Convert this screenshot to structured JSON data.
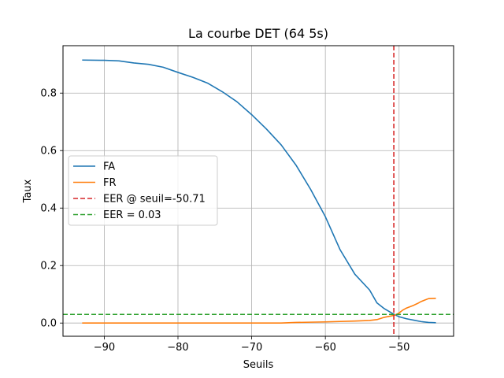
{
  "chart_data": {
    "type": "line",
    "title": "La courbe DET (64 5s)",
    "xlabel": "Seuils",
    "ylabel": "Taux",
    "xlim": [
      -95.6,
      -42.6
    ],
    "ylim": [
      -0.046,
      0.965
    ],
    "xticks": [
      -90,
      -80,
      -70,
      -60,
      -50
    ],
    "yticks": [
      0.0,
      0.2,
      0.4,
      0.6,
      0.8
    ],
    "grid": true,
    "legend_position": "center-left",
    "series": [
      {
        "name": "FA",
        "color": "#1f77b4",
        "style": "solid",
        "x": [
          -93,
          -90,
          -88,
          -86,
          -84,
          -82,
          -80,
          -78,
          -76,
          -74,
          -72,
          -70,
          -68,
          -66,
          -64,
          -62,
          -60,
          -58,
          -56,
          -54,
          -53,
          -52,
          -51,
          -50.5,
          -50,
          -49,
          -48,
          -47,
          -46,
          -45
        ],
        "y": [
          0.915,
          0.914,
          0.912,
          0.905,
          0.9,
          0.89,
          0.872,
          0.855,
          0.835,
          0.805,
          0.77,
          0.725,
          0.675,
          0.62,
          0.55,
          0.465,
          0.37,
          0.255,
          0.17,
          0.115,
          0.07,
          0.05,
          0.035,
          0.028,
          0.022,
          0.015,
          0.01,
          0.005,
          0.002,
          0.001
        ]
      },
      {
        "name": "FR",
        "color": "#ff7f0e",
        "style": "solid",
        "x": [
          -93,
          -80,
          -70,
          -66,
          -64,
          -60,
          -56,
          -54,
          -53,
          -52,
          -51,
          -50.5,
          -50,
          -49.5,
          -49,
          -48,
          -47.5,
          -47,
          -46.5,
          -46,
          -45
        ],
        "y": [
          0.0,
          0.0,
          0.0,
          0.0,
          0.002,
          0.004,
          0.007,
          0.009,
          0.012,
          0.02,
          0.025,
          0.028,
          0.035,
          0.045,
          0.052,
          0.062,
          0.068,
          0.075,
          0.08,
          0.085,
          0.086
        ]
      }
    ],
    "reference_lines": [
      {
        "name": "EER @ seuil=-50.71",
        "orientation": "vertical",
        "value": -50.71,
        "color": "#d62728",
        "style": "dashed"
      },
      {
        "name": "EER = 0.03",
        "orientation": "horizontal",
        "value": 0.03,
        "color": "#2ca02c",
        "style": "dashed"
      }
    ]
  }
}
